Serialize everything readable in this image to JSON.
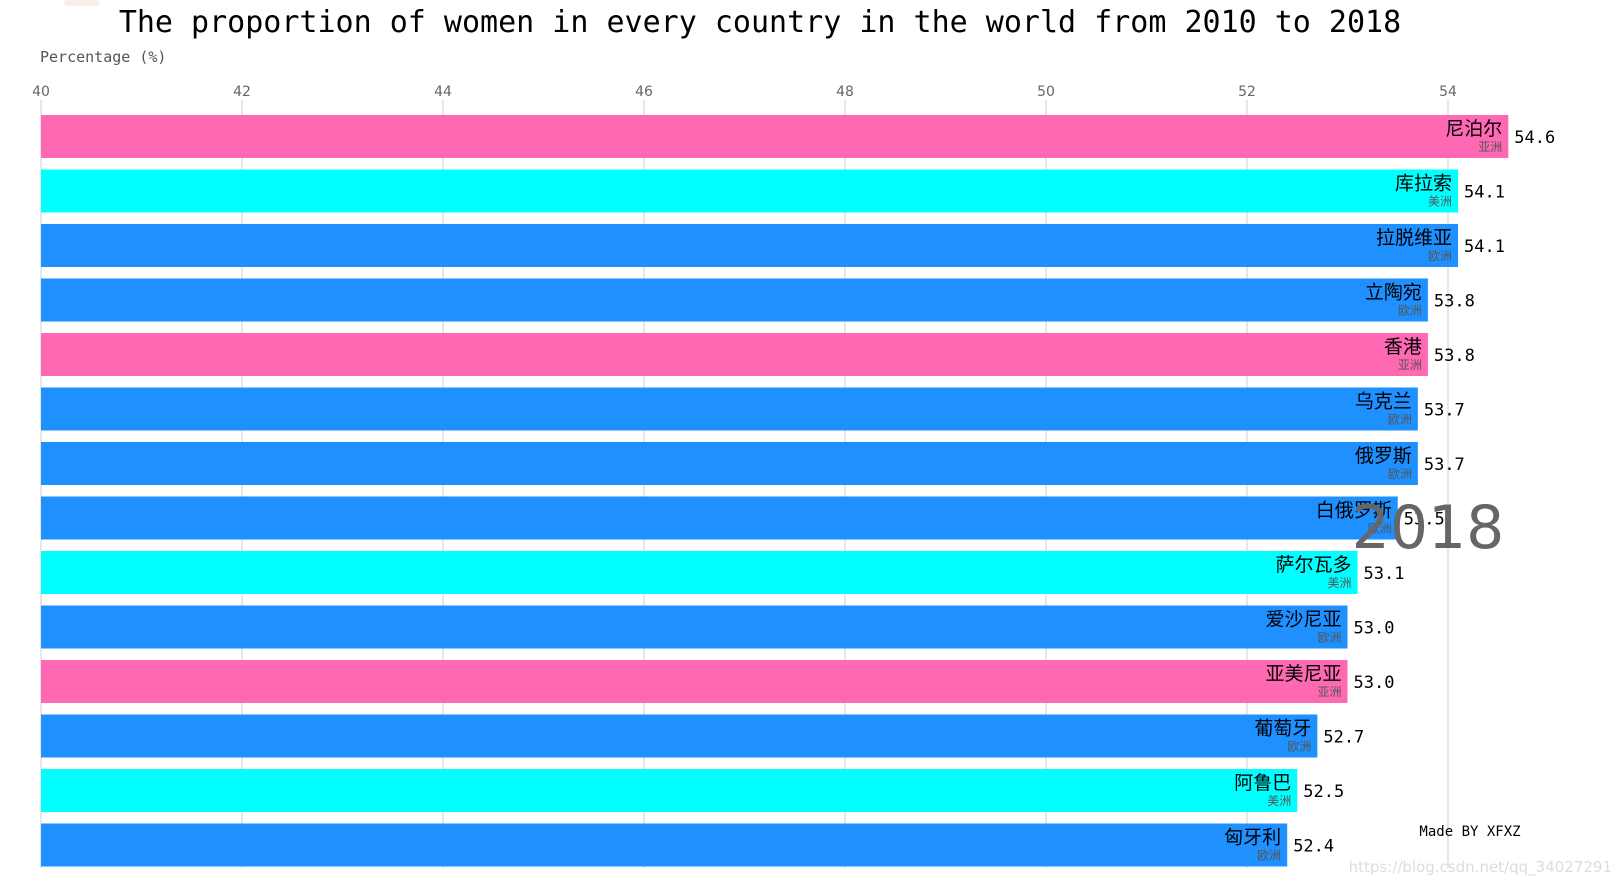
{
  "chart_data": {
    "type": "bar",
    "orientation": "horizontal",
    "title": "The proportion of women in every country in the world from 2010 to 2018",
    "ylabel": "Percentage (%)",
    "xlim": [
      40,
      55
    ],
    "ticks": [
      40,
      42,
      44,
      46,
      48,
      50,
      52,
      54
    ],
    "year": "2018",
    "credit": "Made BY XFXZ",
    "watermark": "https://blog.csdn.net/qq_34027291",
    "colors": {
      "亚洲": "#FF69B4",
      "美洲": "#00FFFF",
      "欧洲": "#1E90FF"
    },
    "bars": [
      {
        "name": "尼泊尔",
        "continent": "亚洲",
        "value": 54.6,
        "label": "54.6"
      },
      {
        "name": "库拉索",
        "continent": "美洲",
        "value": 54.1,
        "label": "54.1"
      },
      {
        "name": "拉脱维亚",
        "continent": "欧洲",
        "value": 54.1,
        "label": "54.1"
      },
      {
        "name": "立陶宛",
        "continent": "欧洲",
        "value": 53.8,
        "label": "53.8"
      },
      {
        "name": "香港",
        "continent": "亚洲",
        "value": 53.8,
        "label": "53.8"
      },
      {
        "name": "乌克兰",
        "continent": "欧洲",
        "value": 53.7,
        "label": "53.7"
      },
      {
        "name": "俄罗斯",
        "continent": "欧洲",
        "value": 53.7,
        "label": "53.7"
      },
      {
        "name": "白俄罗斯",
        "continent": "欧洲",
        "value": 53.5,
        "label": "53.5"
      },
      {
        "name": "萨尔瓦多",
        "continent": "美洲",
        "value": 53.1,
        "label": "53.1"
      },
      {
        "name": "爱沙尼亚",
        "continent": "欧洲",
        "value": 53.0,
        "label": "53.0"
      },
      {
        "name": "亚美尼亚",
        "continent": "亚洲",
        "value": 53.0,
        "label": "53.0"
      },
      {
        "name": "葡萄牙",
        "continent": "欧洲",
        "value": 52.7,
        "label": "52.7"
      },
      {
        "name": "阿鲁巴",
        "continent": "美洲",
        "value": 52.5,
        "label": "52.5"
      },
      {
        "name": "匈牙利",
        "continent": "欧洲",
        "value": 52.4,
        "label": "52.4"
      }
    ]
  }
}
